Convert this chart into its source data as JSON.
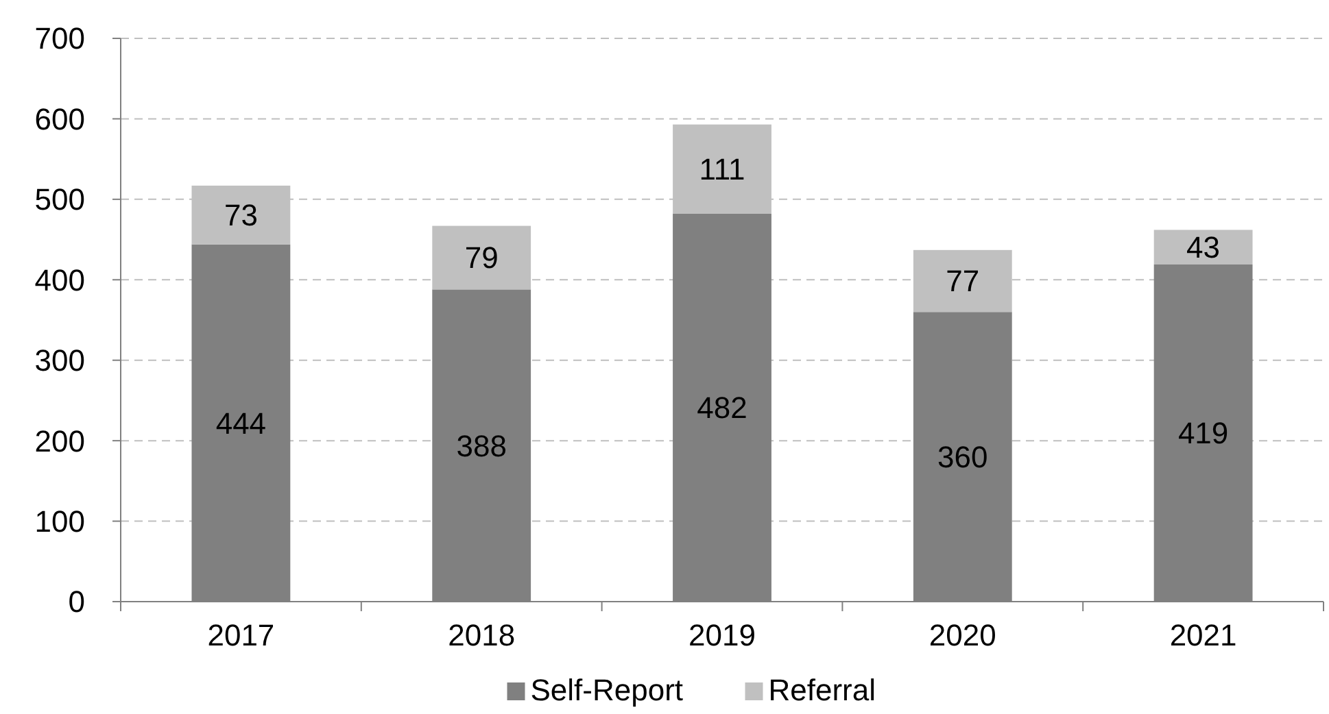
{
  "chart_data": {
    "type": "bar",
    "stacked": true,
    "categories": [
      "2017",
      "2018",
      "2019",
      "2020",
      "2021"
    ],
    "series": [
      {
        "name": "Self-Report",
        "color": "#808080",
        "values": [
          444,
          388,
          482,
          360,
          419
        ]
      },
      {
        "name": "Referral",
        "color": "#c0c0c0",
        "values": [
          73,
          79,
          111,
          77,
          43
        ]
      }
    ],
    "ylim": [
      0,
      700
    ],
    "yticks": [
      0,
      100,
      200,
      300,
      400,
      500,
      600,
      700
    ],
    "grid": "y",
    "legend": "bottom",
    "data_labels": true
  }
}
